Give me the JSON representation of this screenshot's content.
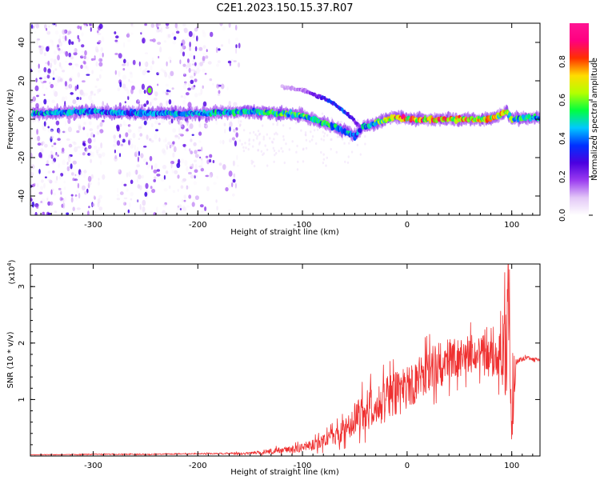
{
  "title": "C2E1.2023.150.15.37.R07",
  "chart_data": [
    {
      "type": "heatmap",
      "xlabel": "Height of straight line (km)",
      "ylabel": "Frequency (Hz)",
      "xlim": [
        -360,
        127
      ],
      "ylim": [
        -50,
        50
      ],
      "xticks": [
        -300,
        -200,
        -100,
        0,
        100
      ],
      "yticks": [
        -40,
        -20,
        0,
        20,
        40
      ],
      "colorbar": {
        "label": "Normalized spectral amplitude",
        "range": [
          0,
          1
        ],
        "ticks": [
          "0.0",
          "0.2",
          "0.4",
          "0.6",
          "0.8"
        ],
        "colors": [
          "#ffffff",
          "#e3c8f7",
          "#9b3cf0",
          "#4b00e0",
          "#0030ff",
          "#00c8ff",
          "#00ff40",
          "#b4ff00",
          "#ffdc00",
          "#ff3000",
          "#ff0080",
          "#ff1493"
        ]
      },
      "main_band": {
        "x": [
          -355,
          -300,
          -250,
          -200,
          -150,
          -120,
          -100,
          -80,
          -60,
          -50,
          -42,
          -30,
          -20,
          -10,
          0,
          20,
          50,
          80,
          95,
          100,
          127
        ],
        "freq": [
          3,
          4,
          3,
          3,
          4,
          3,
          2,
          -2,
          -6,
          -9,
          -4,
          -2,
          0,
          1,
          0,
          0,
          0,
          0,
          4,
          0,
          1
        ],
        "amplitude": [
          0.5,
          0.45,
          0.45,
          0.5,
          0.55,
          0.6,
          0.6,
          0.55,
          0.5,
          0.45,
          0.5,
          0.6,
          0.75,
          0.85,
          0.85,
          0.85,
          0.85,
          0.8,
          0.7,
          0.6,
          0.5
        ]
      },
      "side_branch": {
        "x": [
          -120,
          -100,
          -80,
          -70,
          -60,
          -52,
          -45
        ],
        "freq": [
          17,
          15,
          11,
          8,
          4,
          0,
          -4
        ],
        "amplitude": [
          0.1,
          0.15,
          0.3,
          0.35,
          0.35,
          0.3,
          0.2
        ]
      },
      "hot_spot": {
        "x": -246,
        "freq": 15,
        "amplitude": 0.6
      },
      "noise_columns": [
        {
          "x_range": [
            -360,
            -290
          ],
          "density": 0.9
        },
        {
          "x_range": [
            -280,
            -245
          ],
          "density": 0.7
        },
        {
          "x_range": [
            -245,
            -190
          ],
          "density": 0.8
        },
        {
          "x_range": [
            -190,
            -160
          ],
          "density": 0.35
        }
      ]
    },
    {
      "type": "line",
      "xlabel": "Height of straight line (km)",
      "ylabel": "SNR (10 * v/v)",
      "y_multiplier": "(x10",
      "y_multiplier_exp": "4",
      "xlim": [
        -360,
        127
      ],
      "ylim": [
        0,
        3.4
      ],
      "xticks": [
        -300,
        -200,
        -100,
        0,
        100
      ],
      "yticks": [
        1,
        2,
        3
      ],
      "series": [
        {
          "color": "#ef3030",
          "x": [
            -360,
            -300,
            -250,
            -200,
            -150,
            -130,
            -110,
            -100,
            -80,
            -60,
            -50,
            -40,
            -30,
            -20,
            -10,
            0,
            10,
            20,
            30,
            40,
            50,
            60,
            70,
            75,
            80,
            85,
            90,
            95,
            98,
            100,
            103,
            105,
            110,
            115,
            120,
            127
          ],
          "y": [
            0.02,
            0.03,
            0.03,
            0.04,
            0.05,
            0.08,
            0.12,
            0.15,
            0.25,
            0.45,
            0.7,
            0.8,
            0.9,
            1.0,
            1.1,
            1.2,
            1.35,
            1.5,
            1.6,
            1.7,
            1.75,
            1.8,
            1.85,
            1.9,
            1.7,
            1.75,
            1.8,
            2.0,
            2.6,
            1.0,
            1.5,
            1.68,
            1.72,
            1.74,
            1.72,
            1.7
          ],
          "noise": [
            0.005,
            0.01,
            0.01,
            0.01,
            0.02,
            0.05,
            0.06,
            0.08,
            0.12,
            0.2,
            0.3,
            0.35,
            0.4,
            0.4,
            0.4,
            0.4,
            0.4,
            0.4,
            0.4,
            0.4,
            0.35,
            0.35,
            0.35,
            0.5,
            0.35,
            0.35,
            0.5,
            1.0,
            1.4,
            1.0,
            0.3,
            0.05,
            0.04,
            0.03,
            0.03,
            0.03
          ]
        }
      ]
    }
  ]
}
